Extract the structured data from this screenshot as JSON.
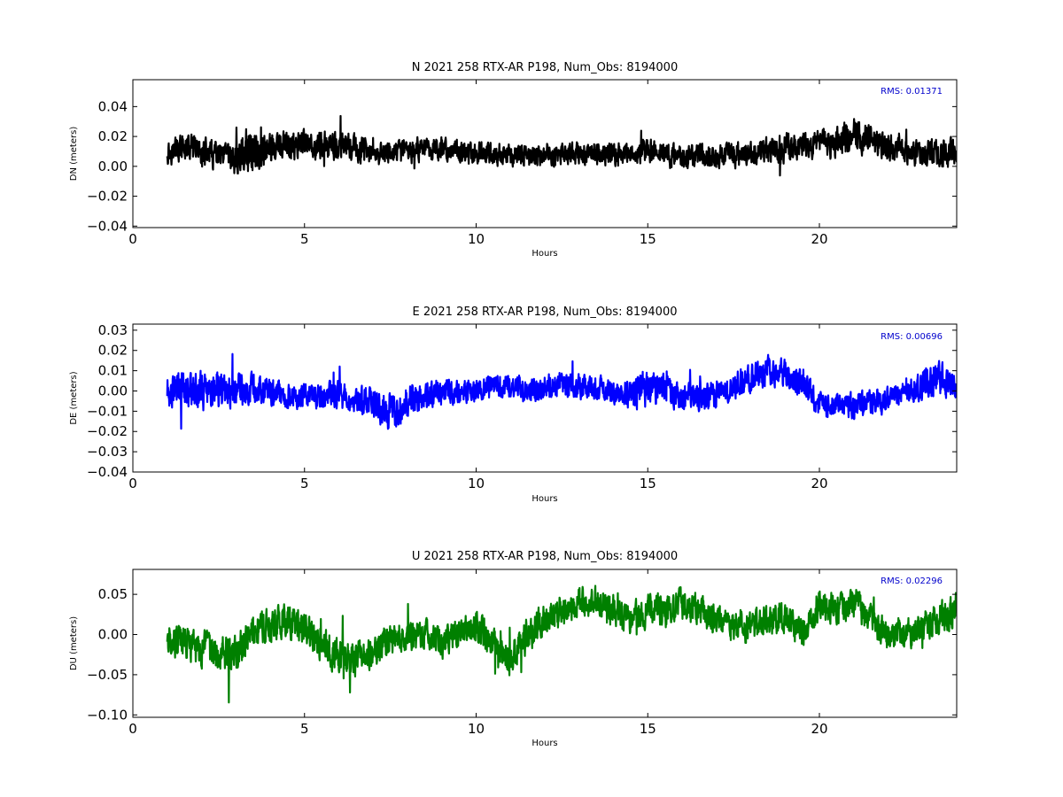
{
  "chart_data": [
    {
      "type": "line",
      "title": "N 2021 258 RTX-AR  P198, Num_Obs: 8194000",
      "xlabel": "Hours",
      "ylabel": "DN (meters)",
      "xlim": [
        0,
        24
      ],
      "ylim": [
        -0.041,
        0.058
      ],
      "xticks": [
        0,
        5,
        10,
        15,
        20
      ],
      "xtick_labels": [
        "0",
        "5",
        "10",
        "15",
        "20"
      ],
      "yticks": [
        -0.04,
        -0.02,
        0.0,
        0.02,
        0.04
      ],
      "ytick_labels": [
        "−0.04",
        "−0.02",
        "0.00",
        "0.02",
        "0.04"
      ],
      "annotation": "RMS:  0.01371",
      "annotation_color": "#0000cc",
      "series": [
        {
          "color": "#000000",
          "x": [
            1.0,
            1.5,
            2.0,
            2.5,
            3.0,
            3.2,
            3.5,
            4.0,
            4.5,
            5.0,
            5.5,
            6.0,
            6.5,
            7.0,
            7.5,
            8.0,
            8.5,
            9.0,
            9.5,
            10.0,
            10.5,
            11.0,
            11.5,
            12.0,
            12.5,
            13.0,
            13.5,
            14.0,
            14.5,
            15.0,
            15.5,
            16.0,
            16.5,
            17.0,
            17.5,
            18.0,
            18.5,
            19.0,
            19.5,
            20.0,
            20.5,
            21.0,
            21.5,
            22.0,
            22.5,
            23.0,
            23.5,
            24.0
          ],
          "center": [
            0.01,
            0.012,
            0.01,
            0.006,
            0.004,
            0.01,
            0.012,
            0.012,
            0.013,
            0.014,
            0.014,
            0.013,
            0.012,
            0.008,
            0.009,
            0.01,
            0.012,
            0.012,
            0.01,
            0.008,
            0.008,
            0.007,
            0.007,
            0.008,
            0.008,
            0.009,
            0.009,
            0.008,
            0.009,
            0.011,
            0.01,
            0.006,
            0.007,
            0.007,
            0.008,
            0.009,
            0.01,
            0.013,
            0.015,
            0.014,
            0.016,
            0.022,
            0.018,
            0.012,
            0.01,
            0.008,
            0.009,
            0.008
          ],
          "amplitude": [
            0.011,
            0.012,
            0.012,
            0.012,
            0.013,
            0.02,
            0.02,
            0.014,
            0.012,
            0.012,
            0.012,
            0.012,
            0.012,
            0.01,
            0.01,
            0.011,
            0.01,
            0.01,
            0.01,
            0.01,
            0.01,
            0.009,
            0.01,
            0.01,
            0.01,
            0.01,
            0.01,
            0.01,
            0.01,
            0.01,
            0.01,
            0.01,
            0.01,
            0.01,
            0.011,
            0.011,
            0.012,
            0.013,
            0.012,
            0.012,
            0.013,
            0.016,
            0.014,
            0.012,
            0.011,
            0.011,
            0.012,
            0.012
          ]
        }
      ]
    },
    {
      "type": "line",
      "title": "E 2021 258 RTX-AR  P198, Num_Obs: 8194000",
      "xlabel": "Hours",
      "ylabel": "DE (meters)",
      "xlim": [
        0,
        24
      ],
      "ylim": [
        -0.04,
        0.033
      ],
      "xticks": [
        0,
        5,
        10,
        15,
        20
      ],
      "xtick_labels": [
        "0",
        "5",
        "10",
        "15",
        "20"
      ],
      "yticks": [
        -0.04,
        -0.03,
        -0.02,
        -0.01,
        0.0,
        0.01,
        0.02,
        0.03
      ],
      "ytick_labels": [
        "−0.04",
        "−0.03",
        "−0.02",
        "−0.01",
        "0.00",
        "0.01",
        "0.02",
        "0.03"
      ],
      "annotation": "RMS:  0.00696",
      "annotation_color": "#0000cc",
      "series": [
        {
          "color": "#0000ff",
          "x": [
            1.0,
            1.5,
            2.0,
            2.5,
            3.0,
            3.5,
            4.0,
            4.5,
            5.0,
            5.5,
            6.0,
            6.5,
            7.0,
            7.5,
            8.0,
            8.5,
            9.0,
            9.5,
            10.0,
            10.5,
            11.0,
            11.5,
            12.0,
            12.5,
            13.0,
            13.5,
            14.0,
            14.5,
            15.0,
            15.5,
            16.0,
            16.5,
            17.0,
            17.5,
            18.0,
            18.5,
            19.0,
            19.5,
            20.0,
            20.5,
            21.0,
            21.5,
            22.0,
            22.5,
            23.0,
            23.5,
            24.0
          ],
          "center": [
            0.0,
            0.002,
            0.0,
            0.001,
            0.0,
            0.002,
            0.0,
            -0.002,
            -0.002,
            -0.003,
            -0.002,
            -0.005,
            -0.006,
            -0.01,
            -0.006,
            -0.002,
            0.0,
            0.0,
            0.0,
            0.002,
            0.003,
            0.0,
            0.002,
            0.004,
            0.002,
            0.001,
            0.0,
            -0.002,
            0.002,
            0.0,
            -0.004,
            -0.004,
            -0.002,
            0.002,
            0.006,
            0.01,
            0.008,
            0.004,
            -0.006,
            -0.008,
            -0.007,
            -0.006,
            -0.004,
            0.0,
            0.004,
            0.006,
            0.003
          ],
          "amplitude": [
            0.011,
            0.012,
            0.012,
            0.012,
            0.011,
            0.011,
            0.009,
            0.008,
            0.008,
            0.008,
            0.009,
            0.009,
            0.01,
            0.012,
            0.01,
            0.009,
            0.009,
            0.008,
            0.008,
            0.008,
            0.008,
            0.008,
            0.008,
            0.008,
            0.008,
            0.008,
            0.008,
            0.01,
            0.013,
            0.01,
            0.009,
            0.009,
            0.009,
            0.009,
            0.009,
            0.009,
            0.009,
            0.009,
            0.008,
            0.008,
            0.008,
            0.008,
            0.008,
            0.008,
            0.01,
            0.01,
            0.01
          ]
        }
      ]
    },
    {
      "type": "line",
      "title": "U 2021 258 RTX-AR  P198, Num_Obs: 8194000",
      "xlabel": "Hours",
      "ylabel": "DU (meters)",
      "xlim": [
        0,
        24
      ],
      "ylim": [
        -0.103,
        0.081
      ],
      "xticks": [
        0,
        5,
        10,
        15,
        20
      ],
      "xtick_labels": [
        "0",
        "5",
        "10",
        "15",
        "20"
      ],
      "yticks": [
        -0.1,
        -0.05,
        0.0,
        0.05
      ],
      "ytick_labels": [
        "−0.10",
        "−0.05",
        "0.00",
        "0.05"
      ],
      "annotation": "RMS:  0.02296",
      "annotation_color": "#0000cc",
      "series": [
        {
          "color": "#008000",
          "x": [
            1.0,
            1.5,
            2.0,
            2.5,
            3.0,
            3.5,
            4.0,
            4.5,
            5.0,
            5.5,
            6.0,
            6.5,
            7.0,
            7.5,
            8.0,
            8.5,
            9.0,
            9.5,
            10.0,
            10.5,
            11.0,
            11.5,
            12.0,
            12.5,
            13.0,
            13.5,
            14.0,
            14.5,
            15.0,
            15.5,
            16.0,
            16.5,
            17.0,
            17.5,
            18.0,
            18.5,
            19.0,
            19.5,
            20.0,
            20.5,
            21.0,
            21.5,
            22.0,
            22.5,
            23.0,
            23.5,
            24.0
          ],
          "center": [
            -0.005,
            -0.01,
            -0.02,
            -0.02,
            -0.025,
            0.0,
            0.01,
            0.02,
            0.005,
            -0.01,
            -0.03,
            -0.03,
            -0.02,
            -0.005,
            0.0,
            0.0,
            -0.01,
            0.005,
            0.01,
            -0.01,
            -0.03,
            0.0,
            0.02,
            0.03,
            0.04,
            0.04,
            0.03,
            0.02,
            0.03,
            0.03,
            0.04,
            0.03,
            0.02,
            0.01,
            0.01,
            0.02,
            0.02,
            0.0,
            0.04,
            0.03,
            0.04,
            0.02,
            0.0,
            0.0,
            0.01,
            0.02,
            0.03
          ],
          "amplitude": [
            0.025,
            0.028,
            0.03,
            0.03,
            0.03,
            0.03,
            0.03,
            0.028,
            0.028,
            0.028,
            0.03,
            0.028,
            0.025,
            0.025,
            0.025,
            0.025,
            0.025,
            0.025,
            0.025,
            0.025,
            0.028,
            0.028,
            0.025,
            0.025,
            0.025,
            0.025,
            0.025,
            0.025,
            0.025,
            0.028,
            0.028,
            0.025,
            0.025,
            0.025,
            0.025,
            0.025,
            0.025,
            0.025,
            0.028,
            0.025,
            0.025,
            0.025,
            0.025,
            0.025,
            0.025,
            0.028,
            0.03
          ]
        }
      ]
    }
  ]
}
